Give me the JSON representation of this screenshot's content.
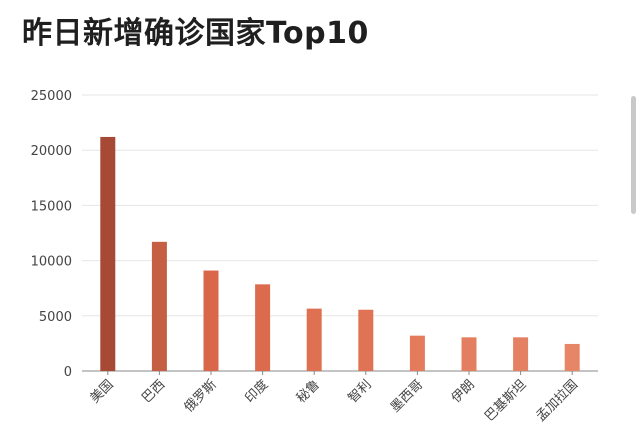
{
  "title": "昨日新增确诊国家Top10",
  "chart_data": {
    "type": "bar",
    "title": "昨日新增确诊国家Top10",
    "categories": [
      "美国",
      "巴西",
      "俄罗斯",
      "印度",
      "秘鲁",
      "智利",
      "墨西哥",
      "伊朗",
      "巴基斯坦",
      "孟加拉国"
    ],
    "values": [
      21200,
      11700,
      9100,
      7850,
      5650,
      5550,
      3200,
      3050,
      3050,
      2450
    ],
    "ylim": [
      0,
      25000
    ],
    "yticks": [
      0,
      5000,
      10000,
      15000,
      20000,
      25000
    ],
    "xlabel": "",
    "ylabel": "",
    "grid": true,
    "colors": [
      "#a64a35",
      "#c45f43",
      "#d9684a",
      "#dc6b4e",
      "#df7052",
      "#e07355",
      "#e37b5c",
      "#e47e60",
      "#e58163",
      "#e78567"
    ]
  }
}
